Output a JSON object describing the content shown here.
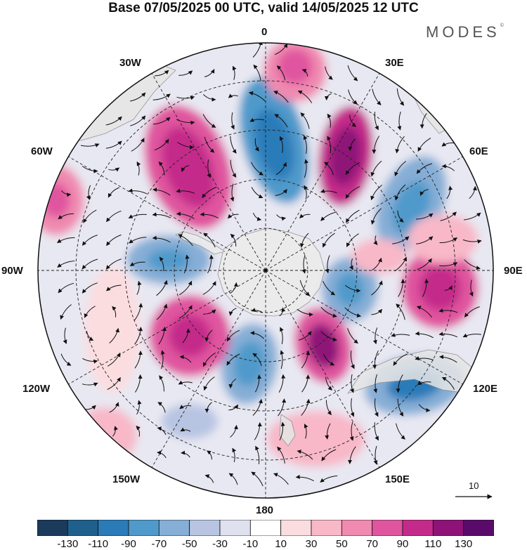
{
  "title": "Base 07/05/2025 00 UTC, valid 14/05/2025 12 UTC",
  "brand": "MODES",
  "brand_mark": "©",
  "longitude_labels": {
    "lon_0": "0",
    "lon_30e": "30E",
    "lon_60e": "60E",
    "lon_90e": "90E",
    "lon_120e": "120E",
    "lon_150e": "150E",
    "lon_180": "180",
    "lon_150w": "150W",
    "lon_120w": "120W",
    "lon_90w": "90W",
    "lon_60w": "60W",
    "lon_30w": "30W"
  },
  "reference_vector_label": "10",
  "colorbar": {
    "tick_labels": [
      "-130",
      "-110",
      "-90",
      "-70",
      "-50",
      "-30",
      "-10",
      "10",
      "30",
      "50",
      "70",
      "90",
      "110",
      "130"
    ],
    "colors": [
      "#1b3a5c",
      "#1f5f8b",
      "#2b7bb9",
      "#4f9acb",
      "#86aed6",
      "#b7c5e2",
      "#dfe1ee",
      "#ffffff",
      "#fbdde0",
      "#f8b8c8",
      "#f08ab0",
      "#e0559f",
      "#c42a8a",
      "#8e1278",
      "#5a0a6a"
    ]
  },
  "colors": {
    "land": "#ececec",
    "grid": "#222222",
    "vectors": "#111111"
  }
}
